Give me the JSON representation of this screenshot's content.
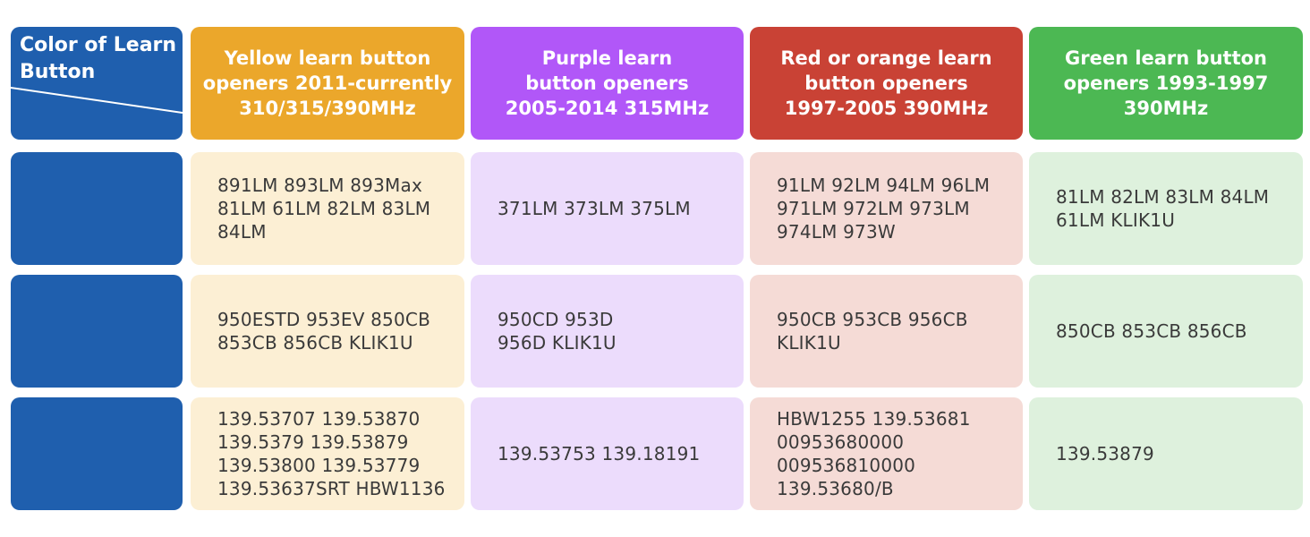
{
  "header": {
    "corner_label": "Color of Learn\nButton",
    "columns": [
      {
        "label": "Yellow learn button\nopeners  2011-currently\n310/315/390MHz",
        "color": "#eba72b"
      },
      {
        "label": "Purple learn\nbutton openers\n2005-2014  315MHz",
        "color": "#b157f8"
      },
      {
        "label": "Red or orange learn\nbutton openers\n1997-2005  390MHz",
        "color": "#c94235"
      },
      {
        "label": "Green learn button\nopeners  1993-1997\n390MHz",
        "color": "#4cb853"
      }
    ]
  },
  "row_label_color": "#1f5fae",
  "cell_colors": [
    "#fcefd4",
    "#ecdcfc",
    "#f5dbd6",
    "#def1dd"
  ],
  "rows": [
    {
      "cells": [
        "891LM 893LM 893Max\n81LM 61LM 82LM 83LM\n84LM",
        "371LM 373LM 375LM",
        "91LM 92LM 94LM 96LM\n971LM 972LM 973LM\n974LM 973W",
        "81LM 82LM 83LM 84LM\n61LM KLIK1U"
      ]
    },
    {
      "cells": [
        "950ESTD 953EV 850CB\n853CB 856CB KLIK1U",
        "950CD 953D\n956D KLIK1U",
        "950CB 953CB 956CB\nKLIK1U",
        "850CB 853CB 856CB"
      ]
    },
    {
      "cells": [
        "139.53707 139.53870\n139.5379 139.53879\n139.53800 139.53779\n139.53637SRT HBW1136",
        "139.53753 139.18191",
        "HBW1255 139.53681\n00953680000\n009536810000\n139.53680/B",
        "139.53879"
      ]
    }
  ]
}
